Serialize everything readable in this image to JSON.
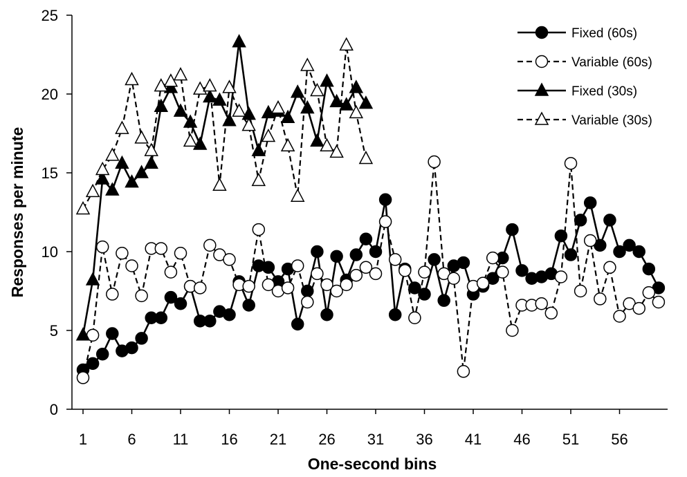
{
  "chart_data": {
    "type": "line",
    "xlabel": "One-second bins",
    "ylabel": "Responses per minute",
    "xlim": [
      1,
      60
    ],
    "ylim": [
      0,
      25
    ],
    "x_tick_labels": [
      "1",
      "6",
      "11",
      "16",
      "21",
      "26",
      "31",
      "36",
      "41",
      "46",
      "51",
      "56"
    ],
    "y_ticks": [
      0,
      5,
      10,
      15,
      20,
      25
    ],
    "grid": false,
    "legend_position": "top-right",
    "series": [
      {
        "name": "Fixed (60s)",
        "style": "solid",
        "marker": "circle",
        "fill": "#000000",
        "values": [
          2.5,
          2.9,
          3.5,
          4.8,
          3.7,
          3.9,
          4.5,
          5.8,
          5.8,
          7.1,
          6.7,
          7.8,
          5.6,
          5.6,
          6.2,
          6.0,
          8.1,
          6.6,
          9.1,
          9.0,
          8.1,
          8.9,
          5.4,
          7.5,
          10.0,
          6.0,
          9.7,
          8.2,
          9.8,
          10.8,
          10.0,
          13.3,
          6.0,
          8.9,
          7.7,
          7.3,
          9.5,
          6.9,
          9.1,
          9.3,
          7.3,
          7.8,
          8.3,
          9.6,
          11.4,
          8.8,
          8.3,
          8.4,
          8.6,
          11.0,
          9.8,
          12.0,
          13.1,
          10.4,
          12.0,
          10.0,
          10.4,
          10.0,
          8.9,
          7.7
        ]
      },
      {
        "name": "Variable (60s)",
        "style": "dashed",
        "marker": "circle",
        "fill": "#ffffff",
        "values": [
          2.0,
          4.7,
          10.3,
          7.3,
          9.9,
          9.1,
          7.2,
          10.2,
          10.2,
          8.7,
          9.9,
          7.8,
          7.7,
          10.4,
          9.8,
          9.5,
          7.9,
          7.8,
          11.4,
          7.9,
          7.5,
          7.7,
          9.1,
          6.8,
          8.6,
          7.9,
          7.5,
          7.9,
          8.5,
          9.0,
          8.6,
          11.9,
          9.5,
          8.8,
          5.8,
          8.7,
          15.7,
          8.6,
          8.3,
          2.4,
          7.8,
          8.0,
          9.6,
          8.7,
          5.0,
          6.6,
          6.6,
          6.7,
          6.1,
          8.4,
          15.6,
          7.5,
          10.7,
          7.0,
          9.0,
          5.9,
          6.7,
          6.4,
          7.4,
          6.8
        ]
      },
      {
        "name": "Fixed (30s)",
        "style": "solid",
        "marker": "triangle",
        "fill": "#000000",
        "values": [
          4.7,
          8.2,
          14.6,
          13.9,
          15.6,
          14.4,
          15.0,
          15.6,
          19.2,
          20.4,
          18.9,
          18.2,
          16.8,
          19.8,
          19.6,
          18.3,
          23.3,
          18.7,
          16.4,
          18.8,
          18.9,
          18.5,
          20.1,
          19.1,
          17.0,
          20.8,
          19.5,
          19.3,
          20.4,
          19.4
        ]
      },
      {
        "name": "Variable (30s)",
        "style": "dashed",
        "marker": "triangle",
        "fill": "#ffffff",
        "values": [
          12.7,
          13.8,
          15.2,
          16.1,
          17.8,
          20.9,
          17.2,
          16.4,
          20.5,
          20.8,
          21.2,
          17.0,
          20.3,
          20.5,
          14.2,
          20.4,
          18.9,
          18.0,
          14.5,
          17.3,
          19.1,
          16.7,
          13.5,
          21.8,
          20.2,
          16.7,
          16.3,
          23.1,
          18.8,
          15.9
        ]
      }
    ]
  }
}
